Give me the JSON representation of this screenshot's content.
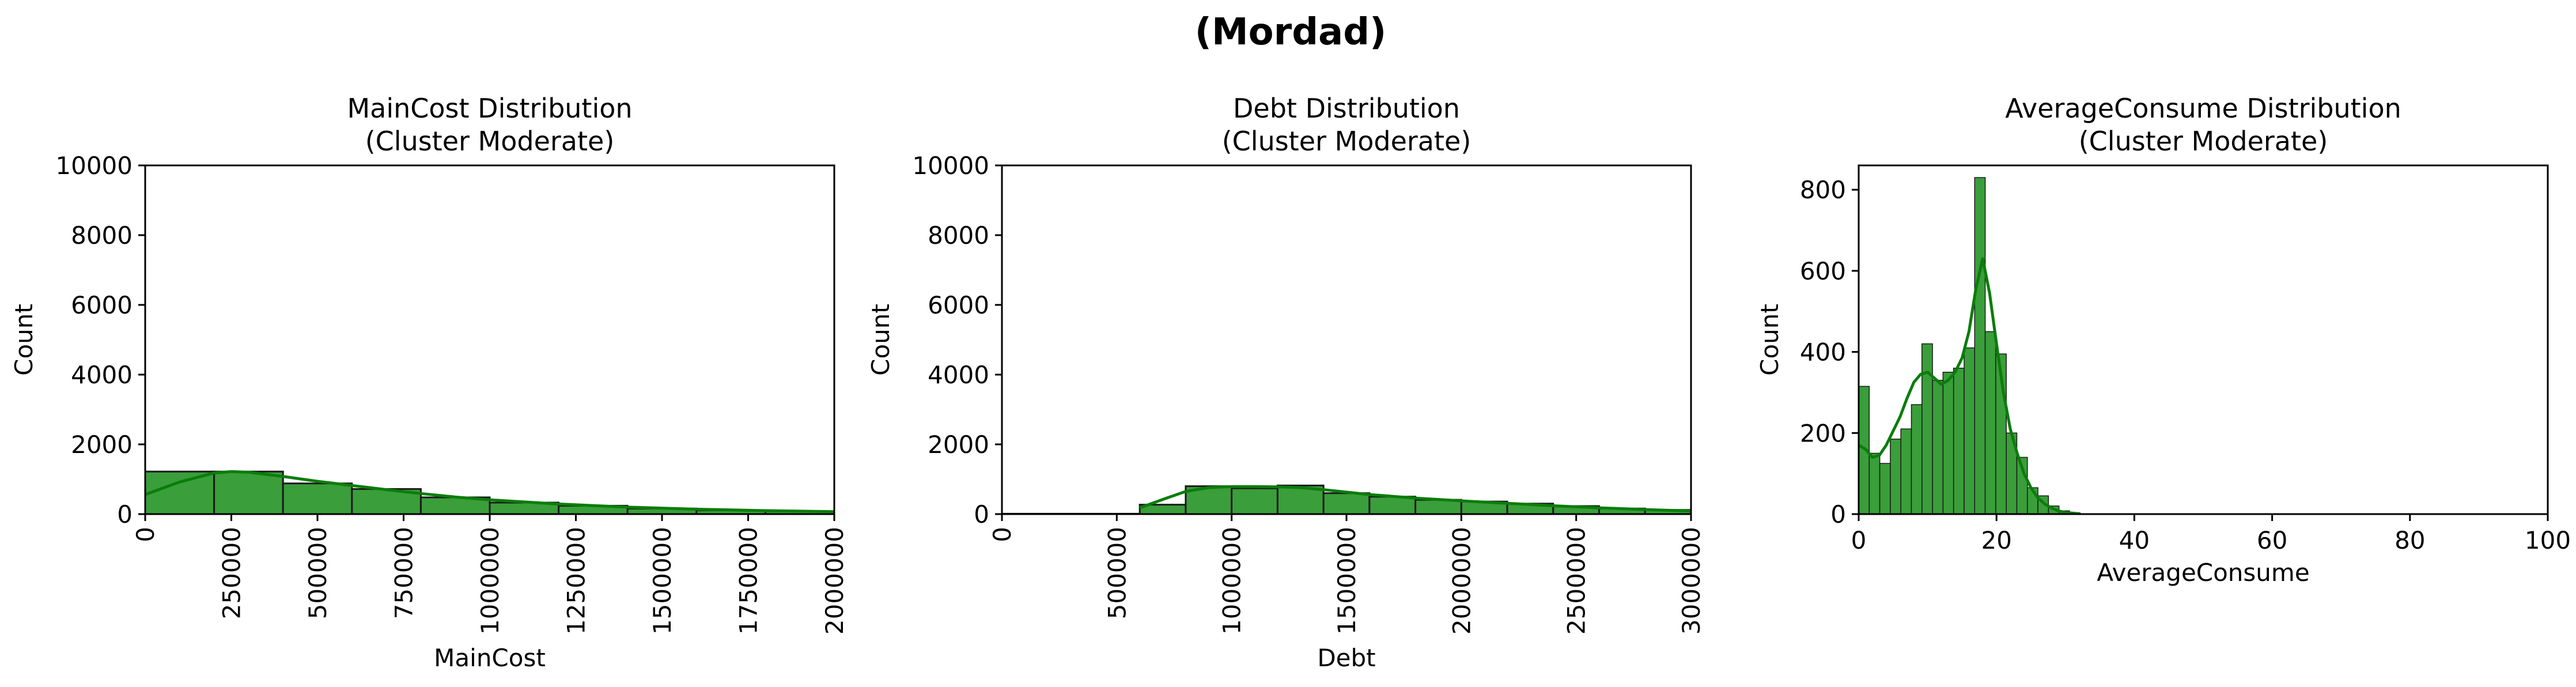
{
  "figure": {
    "suptitle": "(Mordad)"
  },
  "colors": {
    "bar_fill": "#3a9e3a",
    "bar_edge": "#1a1a1a",
    "kde_line": "#0a7d0a"
  },
  "chart_data": [
    {
      "type": "histogram",
      "title": "MainCost Distribution\n(Cluster Moderate)",
      "title_lines": [
        "MainCost Distribution",
        "(Cluster Moderate)"
      ],
      "xlabel": "MainCost",
      "ylabel": "Count",
      "xlim": [
        0,
        2000000
      ],
      "ylim": [
        0,
        10000
      ],
      "xticks": [
        0,
        250000,
        500000,
        750000,
        1000000,
        1250000,
        1500000,
        1750000,
        2000000
      ],
      "xtick_rotation": 90,
      "yticks": [
        0,
        2000,
        4000,
        6000,
        8000,
        10000
      ],
      "bins": [
        {
          "x0": 0,
          "x1": 200000,
          "count": 1220
        },
        {
          "x0": 200000,
          "x1": 400000,
          "count": 1220
        },
        {
          "x0": 400000,
          "x1": 600000,
          "count": 880
        },
        {
          "x0": 600000,
          "x1": 800000,
          "count": 720
        },
        {
          "x0": 800000,
          "x1": 1000000,
          "count": 480
        },
        {
          "x0": 1000000,
          "x1": 1200000,
          "count": 330
        },
        {
          "x0": 1200000,
          "x1": 1400000,
          "count": 240
        },
        {
          "x0": 1400000,
          "x1": 1600000,
          "count": 160
        },
        {
          "x0": 1600000,
          "x1": 1800000,
          "count": 110
        },
        {
          "x0": 1800000,
          "x1": 2000000,
          "count": 80
        }
      ],
      "kde": {
        "x": [
          0,
          100000,
          200000,
          250000,
          300000,
          400000,
          500000,
          600000,
          700000,
          800000,
          900000,
          1000000,
          1200000,
          1400000,
          1600000,
          1800000,
          2000000
        ],
        "y": [
          560,
          920,
          1180,
          1220,
          1200,
          1080,
          940,
          820,
          700,
          590,
          490,
          410,
          290,
          200,
          140,
          100,
          70
        ]
      }
    },
    {
      "type": "histogram",
      "title": "Debt Distribution\n(Cluster Moderate)",
      "title_lines": [
        "Debt Distribution",
        "(Cluster Moderate)"
      ],
      "xlabel": "Debt",
      "ylabel": "Count",
      "xlim": [
        0,
        3000000
      ],
      "ylim": [
        0,
        10000
      ],
      "xticks": [
        0,
        500000,
        1000000,
        1500000,
        2000000,
        2500000,
        3000000
      ],
      "xtick_rotation": 90,
      "yticks": [
        0,
        2000,
        4000,
        6000,
        8000,
        10000
      ],
      "bins": [
        {
          "x0": 0,
          "x1": 600000,
          "count": 10
        },
        {
          "x0": 600000,
          "x1": 800000,
          "count": 270
        },
        {
          "x0": 800000,
          "x1": 1000000,
          "count": 800
        },
        {
          "x0": 1000000,
          "x1": 1200000,
          "count": 740
        },
        {
          "x0": 1200000,
          "x1": 1400000,
          "count": 820
        },
        {
          "x0": 1400000,
          "x1": 1600000,
          "count": 600
        },
        {
          "x0": 1600000,
          "x1": 1800000,
          "count": 500
        },
        {
          "x0": 1800000,
          "x1": 2000000,
          "count": 410
        },
        {
          "x0": 2000000,
          "x1": 2200000,
          "count": 360
        },
        {
          "x0": 2200000,
          "x1": 2400000,
          "count": 300
        },
        {
          "x0": 2400000,
          "x1": 2600000,
          "count": 230
        },
        {
          "x0": 2600000,
          "x1": 2800000,
          "count": 160
        },
        {
          "x0": 2800000,
          "x1": 3000000,
          "count": 120
        }
      ],
      "kde": {
        "x": [
          600000,
          700000,
          800000,
          900000,
          1000000,
          1100000,
          1200000,
          1300000,
          1400000,
          1500000,
          1600000,
          1800000,
          2000000,
          2200000,
          2400000,
          2600000,
          2800000,
          3000000
        ],
        "y": [
          180,
          420,
          650,
          760,
          790,
          790,
          780,
          760,
          700,
          630,
          560,
          460,
          380,
          310,
          240,
          180,
          130,
          90
        ]
      }
    },
    {
      "type": "histogram",
      "title": "AverageConsume Distribution\n(Cluster Moderate)",
      "title_lines": [
        "AverageConsume Distribution",
        "(Cluster Moderate)"
      ],
      "xlabel": "AverageConsume",
      "ylabel": "Count",
      "xlim": [
        0,
        100
      ],
      "ylim": [
        0,
        860
      ],
      "xticks": [
        0,
        20,
        40,
        60,
        80,
        100
      ],
      "xtick_rotation": 0,
      "yticks": [
        0,
        200,
        400,
        600,
        800
      ],
      "bin_start": 0,
      "bin_width": 1.53,
      "counts": [
        315,
        150,
        125,
        185,
        210,
        270,
        420,
        330,
        350,
        360,
        410,
        830,
        450,
        395,
        200,
        140,
        65,
        45,
        20,
        8,
        3
      ],
      "kde": {
        "x": [
          0,
          1,
          2,
          3,
          4,
          5,
          6,
          7,
          8,
          9,
          10,
          11,
          12,
          13,
          14,
          15,
          16,
          17,
          18,
          19,
          20,
          21,
          22,
          23,
          24,
          25,
          26,
          27,
          28,
          29,
          30,
          32
        ],
        "y": [
          170,
          160,
          140,
          145,
          170,
          205,
          240,
          285,
          325,
          345,
          350,
          335,
          320,
          330,
          350,
          385,
          450,
          555,
          630,
          545,
          420,
          300,
          210,
          150,
          100,
          65,
          40,
          25,
          15,
          8,
          4,
          1
        ]
      }
    }
  ]
}
